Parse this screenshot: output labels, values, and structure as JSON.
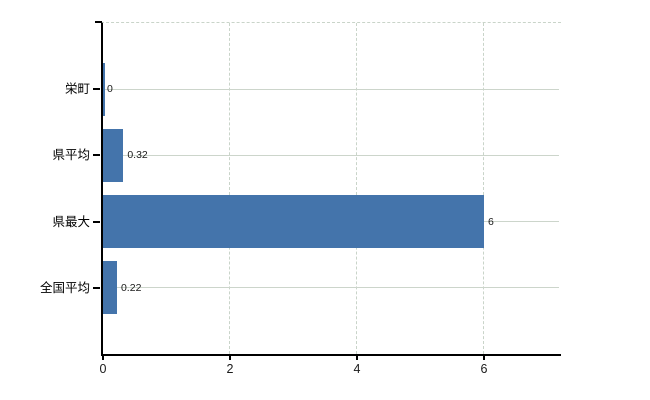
{
  "chart_data": {
    "type": "bar",
    "orientation": "horizontal",
    "title": "",
    "xlabel": "",
    "ylabel": "",
    "categories": [
      "栄町",
      "県平均",
      "県最大",
      "全国平均"
    ],
    "values": [
      0,
      0.32,
      6,
      0.22
    ],
    "value_labels": [
      "0",
      "0.32",
      "6",
      "0.22"
    ],
    "x_ticks": [
      0,
      2,
      4,
      6
    ],
    "x_tick_labels": [
      "0",
      "2",
      "4",
      "6"
    ],
    "xlim": [
      0,
      7.2
    ],
    "grid": true,
    "legend": "none",
    "colors": {
      "bar": "#4474ab",
      "gridline": "#ccd5cb",
      "axis": "#000000",
      "category_label": "#000000",
      "value_label": "#1a1a1a",
      "background": "#ffffff"
    }
  }
}
